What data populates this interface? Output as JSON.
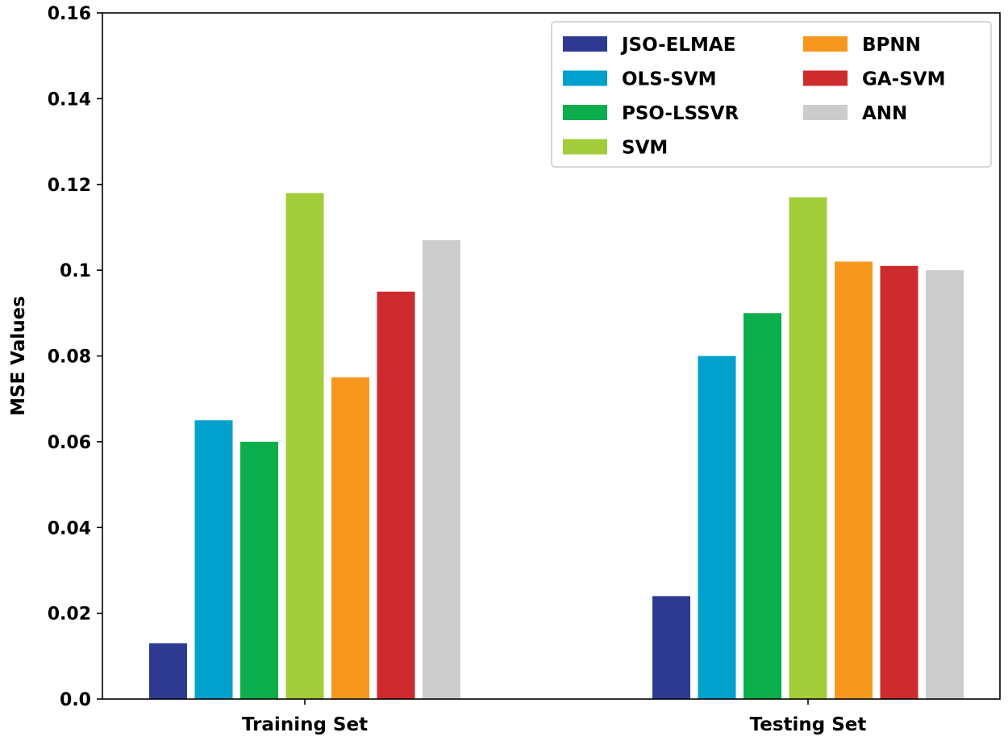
{
  "chart_data": {
    "type": "bar",
    "title": "",
    "xlabel": "",
    "ylabel": "MSE Values",
    "ylim": [
      0,
      0.16
    ],
    "yticks": [
      {
        "value": 0.0,
        "label": "0.0"
      },
      {
        "value": 0.02,
        "label": "0.02"
      },
      {
        "value": 0.04,
        "label": "0.04"
      },
      {
        "value": 0.06,
        "label": "0.06"
      },
      {
        "value": 0.08,
        "label": "0.08"
      },
      {
        "value": 0.1,
        "label": "0.1"
      },
      {
        "value": 0.12,
        "label": "0.12"
      },
      {
        "value": 0.14,
        "label": "0.14"
      },
      {
        "value": 0.16,
        "label": "0.16"
      }
    ],
    "categories": [
      "Training Set",
      "Testing Set"
    ],
    "series": [
      {
        "name": "JSO-ELMAE",
        "color": "#2e3a92",
        "values": [
          0.013,
          0.024
        ]
      },
      {
        "name": "OLS-SVM",
        "color": "#02a0cc",
        "values": [
          0.065,
          0.08
        ]
      },
      {
        "name": "PSO-LSSVR",
        "color": "#0cad4c",
        "values": [
          0.06,
          0.09
        ]
      },
      {
        "name": "SVM",
        "color": "#a3cc3b",
        "values": [
          0.118,
          0.117
        ]
      },
      {
        "name": "BPNN",
        "color": "#f7981e",
        "values": [
          0.075,
          0.102
        ]
      },
      {
        "name": "GA-SVM",
        "color": "#cd2b2d",
        "values": [
          0.095,
          0.101
        ]
      },
      {
        "name": "ANN",
        "color": "#cccccc",
        "values": [
          0.107,
          0.1
        ]
      }
    ],
    "legend": {
      "position": "top-right",
      "columns": 2
    }
  }
}
